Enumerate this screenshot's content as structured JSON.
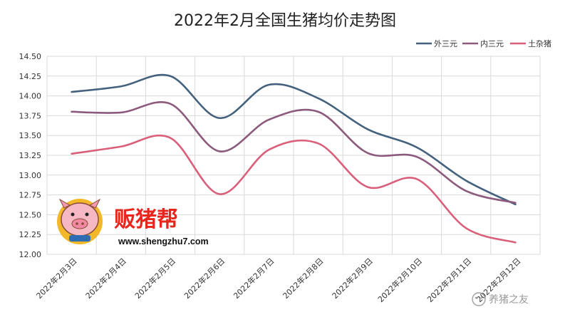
{
  "chart_data": {
    "type": "line",
    "title": "2022年2月全国生猪均价走势图",
    "xlabel": "",
    "ylabel": "",
    "categories": [
      "2022年2月3日",
      "2022年2月4日",
      "2022年2月5日",
      "2022年2月6日",
      "2022年2月7日",
      "2022年2月8日",
      "2022年2月9日",
      "2022年2月10日",
      "2022年2月11日",
      "2022年2月12日"
    ],
    "ylim": [
      12.0,
      14.5
    ],
    "yticks": [
      "12.00",
      "12.25",
      "12.50",
      "12.75",
      "13.00",
      "13.25",
      "13.50",
      "13.75",
      "14.00",
      "14.25",
      "14.50"
    ],
    "grid": true,
    "legend_position": "top-right",
    "series": [
      {
        "name": "外三元",
        "color": "#44617d",
        "values": [
          14.05,
          14.12,
          14.25,
          13.72,
          14.14,
          13.97,
          13.58,
          13.35,
          12.93,
          12.63
        ]
      },
      {
        "name": "内三元",
        "color": "#8c5a7c",
        "values": [
          13.8,
          13.79,
          13.9,
          13.3,
          13.7,
          13.8,
          13.28,
          13.23,
          12.8,
          12.65
        ]
      },
      {
        "name": "土杂猪",
        "color": "#d95f7a",
        "values": [
          13.27,
          13.36,
          13.47,
          12.76,
          13.32,
          13.4,
          12.85,
          12.95,
          12.33,
          12.15
        ]
      }
    ]
  },
  "logo": {
    "brand": "贩猪帮",
    "url": "www.shengzhu7.com"
  },
  "watermark": {
    "text": "养猪之友",
    "icon": "wechat-icon"
  }
}
